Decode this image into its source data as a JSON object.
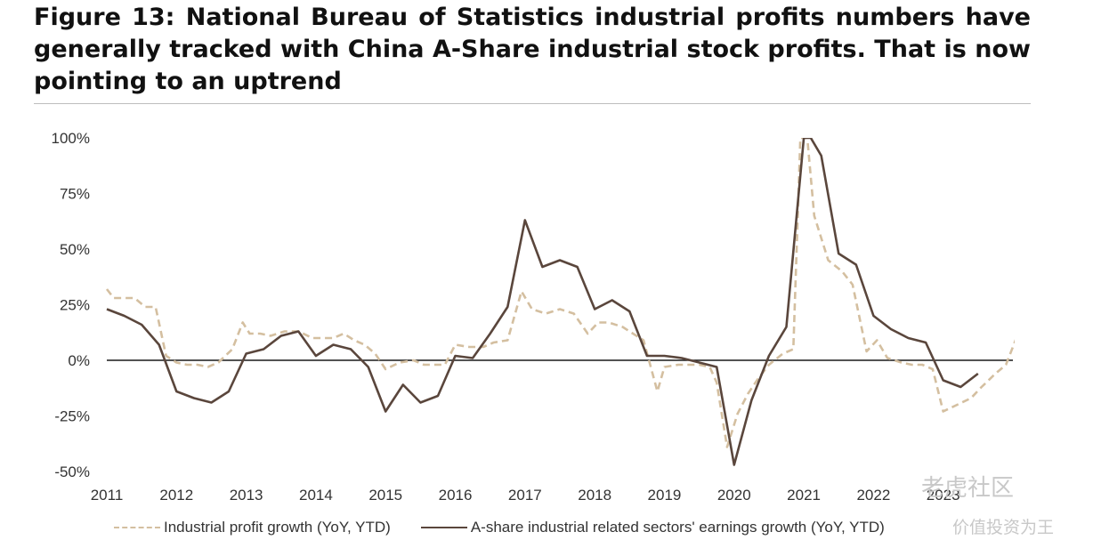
{
  "title": "Figure 13: National Bureau of Statistics industrial profits numbers have generally tracked with China A-Share industrial stock profits. That is now pointing to an uptrend",
  "watermark": "老虎社区",
  "watermark_sub": "价值投资为王",
  "chart_data": {
    "type": "line",
    "ylim": [
      -0.5,
      1.0
    ],
    "y_ticks": [
      {
        "value": 1.0,
        "label": "100%"
      },
      {
        "value": 0.75,
        "label": "75%"
      },
      {
        "value": 0.5,
        "label": "50%"
      },
      {
        "value": 0.25,
        "label": "25%"
      },
      {
        "value": 0.0,
        "label": "0%"
      },
      {
        "value": -0.25,
        "label": "-25%"
      },
      {
        "value": -0.5,
        "label": "-50%"
      }
    ],
    "x_ticks": [
      "2011",
      "2012",
      "2013",
      "2014",
      "2015",
      "2016",
      "2017",
      "2018",
      "2019",
      "2020",
      "2021",
      "2022",
      "2023"
    ],
    "xlim": [
      2011.0,
      2024.0
    ],
    "grid": false,
    "legend_position": "bottom",
    "series": [
      {
        "name": "Industrial profit growth (YoY, YTD)",
        "color": "#d4bfa0",
        "style": "dashed",
        "points": [
          [
            2011.0,
            0.32
          ],
          [
            2011.1,
            0.28
          ],
          [
            2011.25,
            0.28
          ],
          [
            2011.4,
            0.28
          ],
          [
            2011.55,
            0.24
          ],
          [
            2011.7,
            0.24
          ],
          [
            2011.85,
            0.02
          ],
          [
            2012.0,
            -0.01
          ],
          [
            2012.15,
            -0.02
          ],
          [
            2012.3,
            -0.02
          ],
          [
            2012.45,
            -0.03
          ],
          [
            2012.6,
            -0.01
          ],
          [
            2012.8,
            0.05
          ],
          [
            2012.95,
            0.17
          ],
          [
            2013.05,
            0.12
          ],
          [
            2013.2,
            0.12
          ],
          [
            2013.35,
            0.11
          ],
          [
            2013.55,
            0.13
          ],
          [
            2013.75,
            0.13
          ],
          [
            2013.95,
            0.1
          ],
          [
            2014.1,
            0.1
          ],
          [
            2014.25,
            0.1
          ],
          [
            2014.4,
            0.12
          ],
          [
            2014.55,
            0.09
          ],
          [
            2014.7,
            0.07
          ],
          [
            2014.85,
            0.03
          ],
          [
            2015.0,
            -0.04
          ],
          [
            2015.2,
            -0.01
          ],
          [
            2015.4,
            0.0
          ],
          [
            2015.55,
            -0.02
          ],
          [
            2015.7,
            -0.02
          ],
          [
            2015.85,
            -0.02
          ],
          [
            2016.0,
            0.07
          ],
          [
            2016.2,
            0.06
          ],
          [
            2016.4,
            0.06
          ],
          [
            2016.55,
            0.08
          ],
          [
            2016.75,
            0.09
          ],
          [
            2016.95,
            0.31
          ],
          [
            2017.1,
            0.23
          ],
          [
            2017.3,
            0.21
          ],
          [
            2017.5,
            0.23
          ],
          [
            2017.7,
            0.21
          ],
          [
            2017.9,
            0.12
          ],
          [
            2018.05,
            0.17
          ],
          [
            2018.2,
            0.17
          ],
          [
            2018.4,
            0.15
          ],
          [
            2018.55,
            0.12
          ],
          [
            2018.7,
            0.09
          ],
          [
            2018.9,
            -0.14
          ],
          [
            2019.0,
            -0.03
          ],
          [
            2019.2,
            -0.02
          ],
          [
            2019.35,
            -0.02
          ],
          [
            2019.5,
            -0.02
          ],
          [
            2019.65,
            -0.03
          ],
          [
            2019.75,
            -0.1
          ],
          [
            2019.9,
            -0.39
          ],
          [
            2020.05,
            -0.24
          ],
          [
            2020.2,
            -0.15
          ],
          [
            2020.35,
            -0.08
          ],
          [
            2020.5,
            -0.02
          ],
          [
            2020.7,
            0.03
          ],
          [
            2020.85,
            0.05
          ],
          [
            2020.95,
            1.0
          ],
          [
            2021.05,
            1.0
          ],
          [
            2021.15,
            0.65
          ],
          [
            2021.35,
            0.45
          ],
          [
            2021.55,
            0.4
          ],
          [
            2021.7,
            0.34
          ],
          [
            2021.9,
            0.04
          ],
          [
            2022.05,
            0.09
          ],
          [
            2022.2,
            0.01
          ],
          [
            2022.4,
            -0.01
          ],
          [
            2022.55,
            -0.02
          ],
          [
            2022.7,
            -0.02
          ],
          [
            2022.85,
            -0.04
          ],
          [
            2023.0,
            -0.23
          ],
          [
            2023.2,
            -0.2
          ],
          [
            2023.4,
            -0.17
          ],
          [
            2023.55,
            -0.12
          ],
          [
            2023.75,
            -0.06
          ],
          [
            2023.9,
            -0.02
          ],
          [
            2024.05,
            0.1
          ]
        ]
      },
      {
        "name": "A-share industrial related sectors' earnings growth (YoY, YTD)",
        "color": "#5a463c",
        "style": "solid",
        "points": [
          [
            2011.0,
            0.23
          ],
          [
            2011.25,
            0.2
          ],
          [
            2011.5,
            0.16
          ],
          [
            2011.75,
            0.07
          ],
          [
            2012.0,
            -0.14
          ],
          [
            2012.25,
            -0.17
          ],
          [
            2012.5,
            -0.19
          ],
          [
            2012.75,
            -0.14
          ],
          [
            2013.0,
            0.03
          ],
          [
            2013.25,
            0.05
          ],
          [
            2013.5,
            0.11
          ],
          [
            2013.75,
            0.13
          ],
          [
            2014.0,
            0.02
          ],
          [
            2014.25,
            0.07
          ],
          [
            2014.5,
            0.05
          ],
          [
            2014.75,
            -0.03
          ],
          [
            2015.0,
            -0.23
          ],
          [
            2015.25,
            -0.11
          ],
          [
            2015.5,
            -0.19
          ],
          [
            2015.75,
            -0.16
          ],
          [
            2016.0,
            0.02
          ],
          [
            2016.25,
            0.01
          ],
          [
            2016.5,
            0.12
          ],
          [
            2016.75,
            0.24
          ],
          [
            2017.0,
            0.63
          ],
          [
            2017.25,
            0.42
          ],
          [
            2017.5,
            0.45
          ],
          [
            2017.75,
            0.42
          ],
          [
            2018.0,
            0.23
          ],
          [
            2018.25,
            0.27
          ],
          [
            2018.5,
            0.22
          ],
          [
            2018.75,
            0.02
          ],
          [
            2019.0,
            0.02
          ],
          [
            2019.25,
            0.01
          ],
          [
            2019.5,
            -0.01
          ],
          [
            2019.75,
            -0.03
          ],
          [
            2020.0,
            -0.47
          ],
          [
            2020.25,
            -0.18
          ],
          [
            2020.5,
            0.02
          ],
          [
            2020.75,
            0.15
          ],
          [
            2021.0,
            1.0
          ],
          [
            2021.1,
            1.0
          ],
          [
            2021.25,
            0.92
          ],
          [
            2021.5,
            0.48
          ],
          [
            2021.75,
            0.43
          ],
          [
            2022.0,
            0.2
          ],
          [
            2022.25,
            0.14
          ],
          [
            2022.5,
            0.1
          ],
          [
            2022.75,
            0.08
          ],
          [
            2023.0,
            -0.09
          ],
          [
            2023.25,
            -0.12
          ],
          [
            2023.5,
            -0.06
          ]
        ]
      }
    ]
  }
}
